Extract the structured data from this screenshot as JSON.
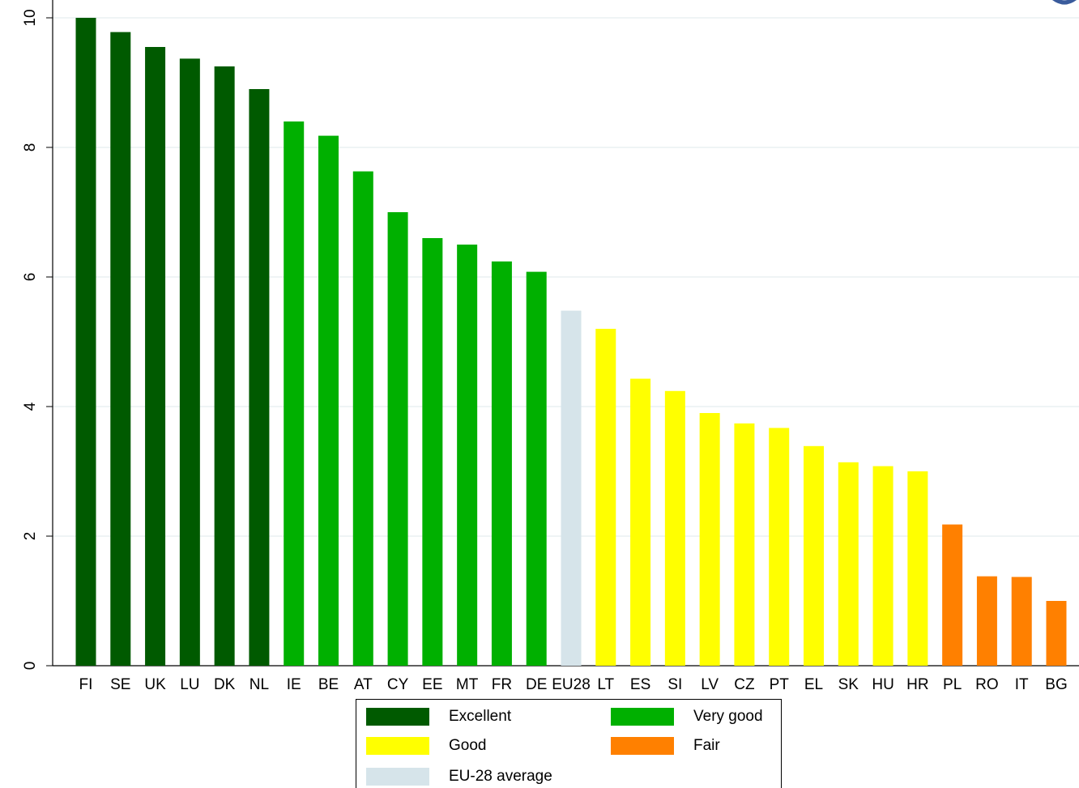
{
  "chart_data": {
    "type": "bar",
    "categories": [
      "FI",
      "SE",
      "UK",
      "LU",
      "DK",
      "NL",
      "IE",
      "BE",
      "AT",
      "CY",
      "EE",
      "MT",
      "FR",
      "DE",
      "EU28",
      "LT",
      "ES",
      "SI",
      "LV",
      "CZ",
      "PT",
      "EL",
      "SK",
      "HU",
      "HR",
      "PL",
      "RO",
      "IT",
      "BG"
    ],
    "values": [
      10.0,
      9.78,
      9.55,
      9.37,
      9.25,
      8.9,
      8.4,
      8.18,
      7.63,
      7.0,
      6.6,
      6.5,
      6.24,
      6.08,
      5.48,
      5.2,
      4.43,
      4.24,
      3.9,
      3.74,
      3.67,
      3.39,
      3.14,
      3.08,
      3.0,
      2.18,
      1.38,
      1.37,
      1.0
    ],
    "ratings": [
      "Excellent",
      "Excellent",
      "Excellent",
      "Excellent",
      "Excellent",
      "Excellent",
      "Very good",
      "Very good",
      "Very good",
      "Very good",
      "Very good",
      "Very good",
      "Very good",
      "Very good",
      "EU-28 average",
      "Good",
      "Good",
      "Good",
      "Good",
      "Good",
      "Good",
      "Good",
      "Good",
      "Good",
      "Good",
      "Fair",
      "Fair",
      "Fair",
      "Fair"
    ],
    "ylim": [
      0,
      10
    ],
    "yticks": [
      "0",
      "2",
      "4",
      "6",
      "8",
      "10"
    ],
    "grid": true,
    "legend_position": "bottom",
    "title": "",
    "xlabel": "",
    "ylabel": ""
  },
  "legend": {
    "items": [
      {
        "label": "Excellent",
        "color": "#005a00"
      },
      {
        "label": "Very good",
        "color": "#00b000"
      },
      {
        "label": "Good",
        "color": "#ffff00"
      },
      {
        "label": "Fair",
        "color": "#ff8000"
      },
      {
        "label": "EU-28 average",
        "color": "#d6e4ea"
      }
    ]
  }
}
